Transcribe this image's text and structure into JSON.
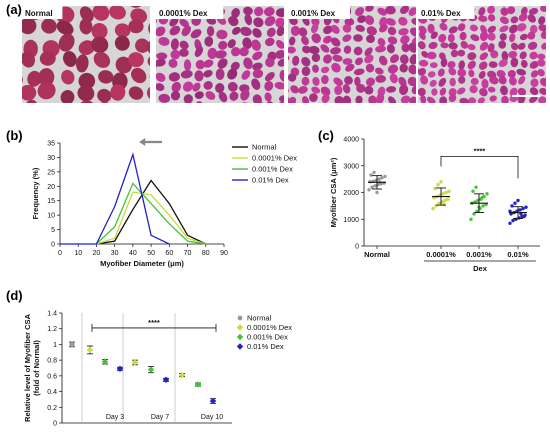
{
  "panels": {
    "a": {
      "letter": "(a)",
      "labels": [
        "Normal",
        "0.0001% Dex",
        "0.001% Dex",
        "0.01% Dex"
      ]
    },
    "b": {
      "letter": "(b)"
    },
    "c": {
      "letter": "(c)"
    },
    "d": {
      "letter": "(d)"
    }
  },
  "colors": {
    "normal": "#111111",
    "dex_0001": "#c8dc3c",
    "dex_001": "#44c238",
    "dex_01": "#2222cc",
    "normal_dot": "#999999",
    "tissue_bg": "#d6d6d6",
    "fiber_pink": "#b0307a",
    "arrow_gray": "#888888"
  },
  "chart_data": [
    {
      "panel": "b",
      "type": "line",
      "xlabel": "Myofiber Diameter (μm)",
      "ylabel": "Frequency (%)",
      "xlim": [
        0,
        90
      ],
      "ylim": [
        0,
        35
      ],
      "xticks": [
        0,
        10,
        20,
        30,
        40,
        50,
        60,
        70,
        80,
        90
      ],
      "yticks": [
        0,
        5,
        10,
        15,
        20,
        25,
        30,
        35
      ],
      "legend_position": "right",
      "series": [
        {
          "name": "Normal",
          "color": "#111111",
          "x": [
            20,
            30,
            40,
            50,
            60,
            70,
            80
          ],
          "y": [
            0,
            1,
            12,
            22,
            14,
            3,
            0
          ]
        },
        {
          "name": "0.0001% Dex",
          "color": "#c8dc3c",
          "x": [
            20,
            30,
            40,
            50,
            60,
            70,
            80
          ],
          "y": [
            0,
            2,
            18,
            17,
            10,
            2,
            0
          ]
        },
        {
          "name": "0.001% Dex",
          "color": "#44c238",
          "x": [
            20,
            30,
            40,
            50,
            60,
            70,
            80
          ],
          "y": [
            0,
            6,
            21,
            14,
            7,
            1,
            0
          ]
        },
        {
          "name": "0.01% Dex",
          "color": "#2222cc",
          "x": [
            0,
            10,
            20,
            30,
            40,
            50,
            60
          ],
          "y": [
            0,
            0,
            0,
            13,
            31,
            3,
            0
          ]
        }
      ]
    },
    {
      "panel": "c",
      "type": "scatter",
      "ylabel": "Myofiber CSA (μm²)",
      "ylim": [
        0,
        4000
      ],
      "yticks": [
        0,
        1000,
        2000,
        3000,
        4000
      ],
      "categories": [
        "Normal",
        "0.0001%",
        "0.001%",
        "0.01%"
      ],
      "group_label": "Dex",
      "significance": "****",
      "series": [
        {
          "name": "Normal",
          "color": "#999999",
          "mean": 2380,
          "sd": 250,
          "values": [
            2100,
            2200,
            2250,
            2300,
            2320,
            2350,
            2400,
            2420,
            2450,
            2500,
            2550,
            2600,
            2650,
            2750,
            2000,
            2380
          ]
        },
        {
          "name": "0.0001%",
          "color": "#c8dc3c",
          "mean": 1850,
          "sd": 320,
          "values": [
            1400,
            1500,
            1600,
            1650,
            1700,
            1750,
            1800,
            1850,
            1900,
            1950,
            2000,
            2050,
            2150,
            2300,
            2400,
            1550
          ]
        },
        {
          "name": "0.001%",
          "color": "#44c238",
          "mean": 1600,
          "sd": 350,
          "values": [
            1000,
            1200,
            1300,
            1400,
            1500,
            1550,
            1600,
            1650,
            1700,
            1750,
            1850,
            1950,
            2050,
            2200,
            1450,
            1800
          ]
        },
        {
          "name": "0.01%",
          "color": "#2222cc",
          "mean": 1250,
          "sd": 220,
          "values": [
            850,
            950,
            1000,
            1050,
            1100,
            1150,
            1200,
            1250,
            1300,
            1350,
            1400,
            1450,
            1500,
            1600,
            1700,
            1200,
            1100,
            1300
          ]
        }
      ]
    },
    {
      "panel": "d",
      "type": "scatter",
      "ylabel": "Relative level of Myofiber CSA (fold of Normal)",
      "ylim": [
        0,
        1.4
      ],
      "yticks": [
        0,
        0.2,
        0.4,
        0.6,
        0.8,
        1.0,
        1.2,
        1.4
      ],
      "day_labels": [
        "Day 3",
        "Day 7",
        "Day 10"
      ],
      "significance": "****",
      "legend_position": "top-right",
      "series": [
        {
          "name": "Normal",
          "color": "#999999",
          "points": [
            {
              "group": "Normal",
              "value": 1.0,
              "err": 0.03
            }
          ]
        },
        {
          "name": "0.0001% Dex",
          "color": "#c8dc3c",
          "points": [
            {
              "group": "Day 3",
              "value": 0.93,
              "err": 0.05
            },
            {
              "group": "Day 7",
              "value": 0.77,
              "err": 0.03
            },
            {
              "group": "Day 10",
              "value": 0.61,
              "err": 0.02
            }
          ]
        },
        {
          "name": "0.001% Dex",
          "color": "#44c238",
          "points": [
            {
              "group": "Day 3",
              "value": 0.78,
              "err": 0.03
            },
            {
              "group": "Day 7",
              "value": 0.68,
              "err": 0.04
            },
            {
              "group": "Day 10",
              "value": 0.49,
              "err": 0.02
            }
          ]
        },
        {
          "name": "0.01% Dex",
          "color": "#2222cc",
          "points": [
            {
              "group": "Day 3",
              "value": 0.69,
              "err": 0.02
            },
            {
              "group": "Day 7",
              "value": 0.55,
              "err": 0.02
            },
            {
              "group": "Day 10",
              "value": 0.28,
              "err": 0.03
            }
          ]
        }
      ]
    }
  ]
}
